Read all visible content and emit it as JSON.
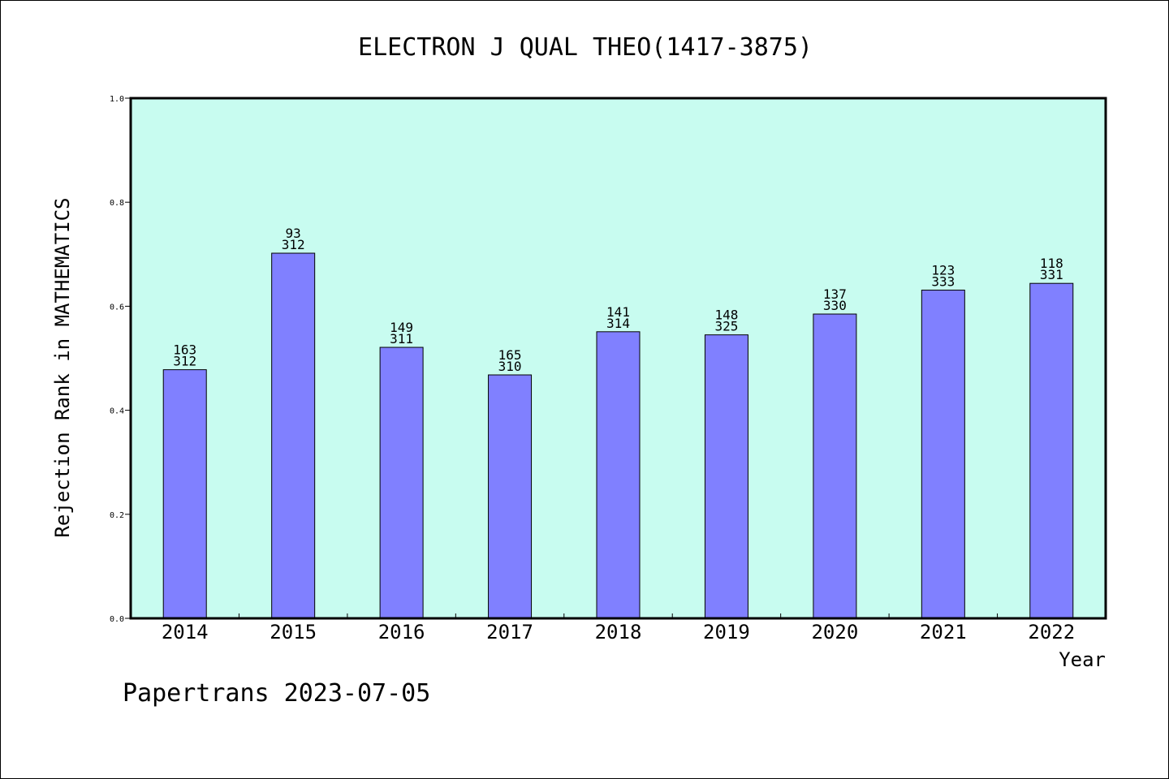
{
  "chart_data": {
    "type": "bar",
    "title": "ELECTRON J QUAL THEO(1417-3875)",
    "xlabel": "Year",
    "ylabel": "Rejection Rank in MATHEMATICS",
    "categories": [
      "2014",
      "2015",
      "2016",
      "2017",
      "2018",
      "2019",
      "2020",
      "2021",
      "2022"
    ],
    "values": [
      0.478,
      0.702,
      0.521,
      0.468,
      0.551,
      0.545,
      0.585,
      0.631,
      0.644
    ],
    "annotations": [
      [
        "163",
        "312"
      ],
      [
        "93",
        "312"
      ],
      [
        "149",
        "311"
      ],
      [
        "165",
        "310"
      ],
      [
        "141",
        "314"
      ],
      [
        "148",
        "325"
      ],
      [
        "137",
        "330"
      ],
      [
        "123",
        "333"
      ],
      [
        "118",
        "331"
      ]
    ],
    "ylim": [
      0,
      1.0
    ],
    "yticks": [
      "0.0",
      "0.2",
      "0.4",
      "0.6",
      "0.8",
      "1.0"
    ],
    "grid": false,
    "colors": {
      "plot_background": "#c8fcf0",
      "bar_fill": "#8080ff",
      "bar_stroke": "#000000"
    },
    "footer": "Papertrans 2023-07-05"
  }
}
